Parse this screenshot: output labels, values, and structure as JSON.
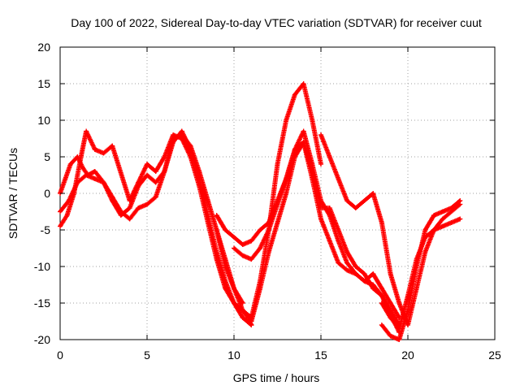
{
  "chart_data": {
    "type": "scatter",
    "title": "Day 100 of 2022, Sidereal Day-to-day VTEC variation (SDTVAR) for receiver cuut",
    "xlabel": "GPS time / hours",
    "ylabel": "SDTVAR / TECUs",
    "xlim": [
      0,
      25
    ],
    "ylim": [
      -20,
      20
    ],
    "xticks": [
      0,
      5,
      10,
      15,
      20,
      25
    ],
    "yticks": [
      -20,
      -15,
      -10,
      -5,
      0,
      5,
      10,
      15,
      20
    ],
    "grid": true,
    "marker": "+",
    "color": "#ff0000",
    "series": [
      {
        "x": [
          0.0,
          0.3,
          0.6,
          1.0,
          1.3,
          1.6,
          2.0,
          2.5,
          3.0,
          3.5,
          4.0,
          4.5,
          5.0,
          5.5,
          6.0,
          6.5,
          7.0,
          7.5,
          8.0,
          8.5,
          9.0,
          9.5,
          10.0,
          10.5,
          11.0
        ],
        "y": [
          0.0,
          2.0,
          4.0,
          5.0,
          3.5,
          2.5,
          3.0,
          1.5,
          -1.0,
          -3.0,
          -2.0,
          1.0,
          2.5,
          1.5,
          3.0,
          7.0,
          8.5,
          6.0,
          2.0,
          -3.0,
          -8.0,
          -12.0,
          -15.0,
          -17.0,
          -18.0
        ]
      },
      {
        "x": [
          0.0,
          0.5,
          1.0,
          1.5,
          2.0,
          2.5,
          3.0,
          3.5,
          4.0,
          4.5,
          5.0,
          5.5,
          6.0,
          6.5,
          7.0,
          7.5,
          8.0,
          8.5,
          9.0,
          9.5,
          10.0,
          10.5
        ],
        "y": [
          -2.5,
          -1.0,
          1.5,
          2.5,
          2.0,
          1.5,
          -0.5,
          -2.5,
          -3.5,
          -2.0,
          -1.5,
          -0.5,
          3.0,
          7.5,
          8.0,
          6.5,
          3.0,
          -1.0,
          -5.0,
          -10.0,
          -13.0,
          -15.0
        ]
      },
      {
        "x": [
          0.0,
          0.4,
          0.8,
          1.2,
          1.5,
          2.0,
          2.5,
          3.0,
          4.0,
          4.5,
          5.0,
          5.5,
          6.0,
          6.5,
          7.0,
          7.5,
          8.0,
          8.5,
          9.0,
          9.5,
          10.0,
          10.5,
          10.8,
          11.0
        ],
        "y": [
          -4.5,
          -3.0,
          0.0,
          5.0,
          8.5,
          6.0,
          5.5,
          6.5,
          -1.0,
          1.5,
          4.0,
          3.0,
          5.0,
          8.0,
          7.5,
          5.0,
          1.0,
          -4.0,
          -9.0,
          -13.0,
          -15.0,
          -16.0,
          -17.0,
          -18.0
        ]
      },
      {
        "x": [
          9.0,
          9.5,
          10.0,
          10.5,
          11.0,
          11.5,
          12.0,
          12.5,
          13.0,
          13.5,
          14.0,
          14.5,
          15.0,
          15.5,
          16.0,
          16.5,
          17.0,
          17.5,
          18.0,
          18.5,
          19.0,
          19.5
        ],
        "y": [
          -5.0,
          -9.0,
          -13.0,
          -16.0,
          -17.5,
          -13.0,
          -8.0,
          -4.0,
          0.0,
          5.0,
          7.0,
          3.0,
          -2.0,
          -2.0,
          -5.0,
          -8.0,
          -10.0,
          -11.0,
          -13.0,
          -14.0,
          -16.5,
          -19.0
        ]
      },
      {
        "x": [
          9.0,
          9.5,
          10.0,
          10.5,
          11.0,
          11.5,
          12.0,
          12.5,
          13.0,
          13.5,
          14.0,
          14.5,
          15.0,
          15.5,
          16.0,
          16.5,
          17.0,
          17.5,
          18.0,
          18.5,
          19.0,
          19.5
        ],
        "y": [
          -3.0,
          -5.0,
          -6.0,
          -7.0,
          -6.5,
          -5.0,
          -4.0,
          -1.0,
          2.0,
          6.0,
          8.5,
          4.0,
          -1.0,
          -3.0,
          -6.5,
          -9.5,
          -11.0,
          -12.0,
          -12.5,
          -14.0,
          -16.0,
          -18.0
        ]
      },
      {
        "x": [
          10.0,
          10.5,
          11.0,
          11.5,
          12.0,
          12.5,
          13.0,
          13.5,
          14.0,
          14.5,
          15.0,
          15.5,
          16.0,
          16.5,
          17.0,
          17.5,
          18.0,
          18.5,
          19.0,
          19.5
        ],
        "y": [
          -7.5,
          -8.5,
          -9.0,
          -7.5,
          -5.0,
          -1.5,
          2.0,
          6.0,
          7.0,
          2.0,
          -3.5,
          -6.5,
          -9.5,
          -10.5,
          -11.0,
          -12.0,
          -11.0,
          -13.0,
          -15.0,
          -17.0
        ]
      },
      {
        "x": [
          10.5,
          11.0,
          11.5,
          12.0,
          12.5,
          13.0,
          13.5,
          14.0,
          14.5,
          15.0
        ],
        "y": [
          -16.0,
          -17.0,
          -12.0,
          -5.0,
          4.0,
          10.0,
          13.5,
          15.0,
          10.0,
          4.0
        ]
      },
      {
        "x": [
          15.0,
          15.5,
          16.0,
          16.5,
          17.0,
          17.5,
          18.0,
          18.5,
          19.0,
          19.5,
          20.0,
          20.5,
          21.0,
          21.5,
          22.0,
          22.5,
          23.0
        ],
        "y": [
          8.0,
          5.0,
          2.0,
          -1.0,
          -2.0,
          -1.0,
          0.0,
          -4.0,
          -11.0,
          -15.0,
          -18.0,
          -13.0,
          -8.0,
          -5.0,
          -4.5,
          -4.0,
          -3.5
        ]
      },
      {
        "x": [
          18.5,
          19.0,
          19.5,
          20.0,
          20.5,
          21.0,
          21.5,
          22.0,
          22.5,
          23.0
        ],
        "y": [
          -18.0,
          -19.5,
          -20.0,
          -16.0,
          -10.0,
          -5.0,
          -3.0,
          -2.5,
          -2.0,
          -1.0
        ]
      },
      {
        "x": [
          18.5,
          19.0,
          19.5,
          20.0,
          20.5,
          21.0,
          21.5,
          22.0,
          22.5,
          23.0
        ],
        "y": [
          -15.0,
          -17.0,
          -18.5,
          -14.0,
          -9.0,
          -6.0,
          -5.0,
          -3.5,
          -2.5,
          -1.5
        ]
      }
    ]
  }
}
